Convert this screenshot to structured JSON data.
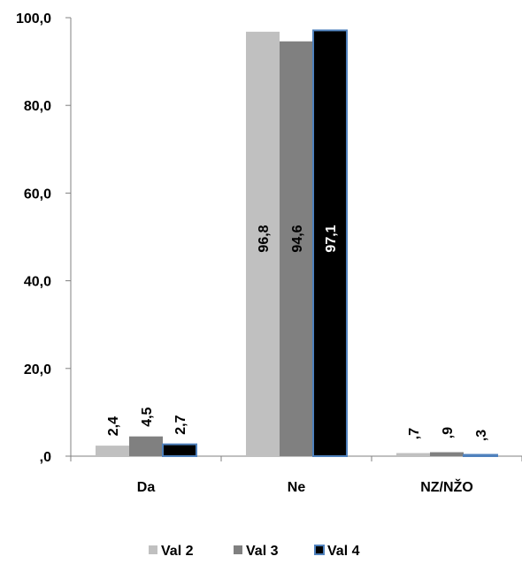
{
  "chart_data": {
    "type": "bar",
    "categories": [
      "Da",
      "Ne",
      "NZ/NŽO"
    ],
    "series": [
      {
        "name": "Val 2",
        "values": [
          2.4,
          96.8,
          0.7
        ],
        "labels": [
          "2,4",
          "96,8",
          ",7"
        ],
        "color": "#c0c0c0"
      },
      {
        "name": "Val 3",
        "values": [
          4.5,
          94.6,
          0.9
        ],
        "labels": [
          "4,5",
          "94,6",
          ",9"
        ],
        "color": "#808080"
      },
      {
        "name": "Val 4",
        "values": [
          2.7,
          97.1,
          0.3
        ],
        "labels": [
          "2,7",
          "97,1",
          ",3"
        ],
        "color": "#000000",
        "border": "#4f81bd"
      }
    ],
    "ylim": [
      0,
      100
    ],
    "yticks": [
      0,
      20,
      40,
      60,
      80,
      100
    ],
    "ytick_labels": [
      ",0",
      "20,0",
      "40,0",
      "60,0",
      "80,0",
      "100,0"
    ],
    "grid": false,
    "legend_position": "bottom"
  }
}
